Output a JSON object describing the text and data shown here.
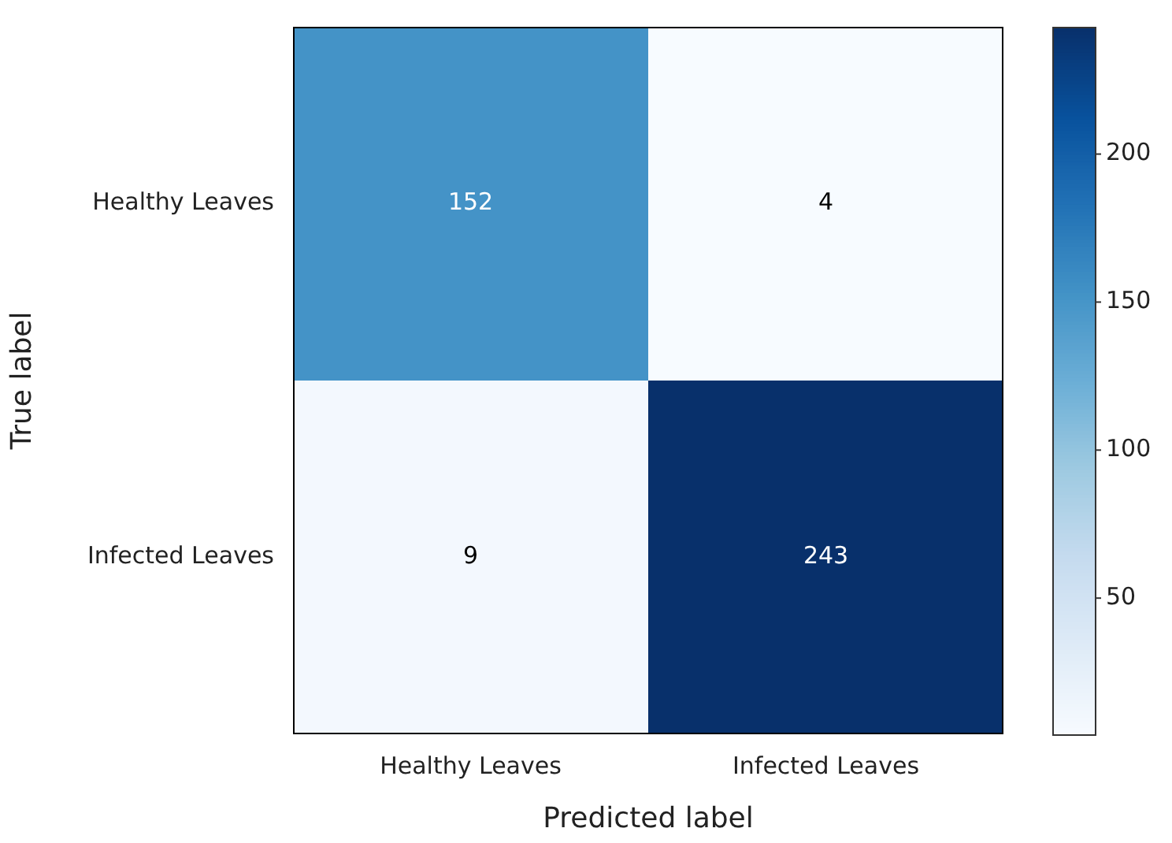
{
  "chart_data": {
    "type": "heatmap",
    "xlabel": "Predicted label",
    "ylabel": "True label",
    "categories": [
      "Healthy Leaves",
      "Infected Leaves"
    ],
    "y_categories": [
      "Healthy Leaves",
      "Infected Leaves"
    ],
    "cells": [
      [
        152,
        4
      ],
      [
        9,
        243
      ]
    ],
    "data_labels": true,
    "clim": [
      4,
      243
    ],
    "cticks": [
      50,
      100,
      150,
      200
    ]
  }
}
